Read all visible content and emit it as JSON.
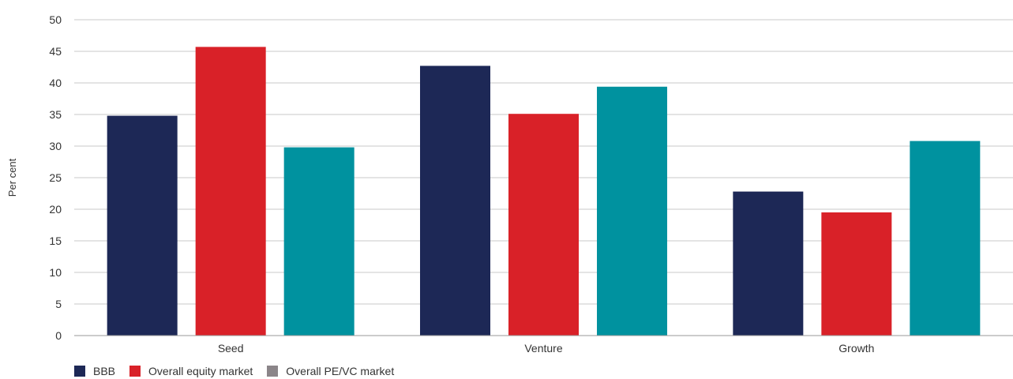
{
  "chart_data": {
    "type": "bar",
    "title": "",
    "xlabel": "",
    "ylabel": "Per cent",
    "ylim": [
      0,
      50
    ],
    "yticks": [
      0,
      5,
      10,
      15,
      20,
      25,
      30,
      35,
      40,
      45,
      50
    ],
    "grid": true,
    "legend_position": "bottom-left",
    "categories": [
      "Seed",
      "Venture",
      "Growth"
    ],
    "series": [
      {
        "name": "BBB",
        "color": "#1d2856",
        "values": [
          34.8,
          42.7,
          22.8
        ]
      },
      {
        "name": "Overall equity market",
        "color": "#d92128",
        "values": [
          45.7,
          35.1,
          19.5
        ]
      },
      {
        "name": "Overall PE/VC market",
        "color": "#00929f",
        "values": [
          29.8,
          39.4,
          30.8
        ]
      }
    ],
    "legend_swatch_colors": [
      "#1d2856",
      "#d92128",
      "#8b8589"
    ]
  }
}
